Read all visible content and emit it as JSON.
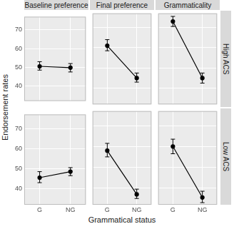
{
  "chart_data": {
    "type": "line",
    "x_label": "Grammatical status",
    "y_label": "Endorsement rates",
    "columns": [
      "Baseline preference",
      "Final preference",
      "Grammaticality"
    ],
    "rows": [
      "High ACS",
      "Low ACS"
    ],
    "categories": [
      "G",
      "NG"
    ],
    "ylim": [
      32,
      77
    ],
    "yticks": [
      40,
      50,
      60,
      70
    ],
    "grid": true,
    "color": "#000000",
    "marker": "circle",
    "panels": [
      {
        "column": "Baseline preference",
        "row": "High ACS",
        "values": [
          50.5,
          49.8
        ],
        "lower": [
          48.5,
          47.5
        ],
        "upper": [
          53,
          52
        ]
      },
      {
        "column": "Final preference",
        "row": "High ACS",
        "values": [
          61,
          45
        ],
        "lower": [
          58.5,
          43
        ],
        "upper": [
          64,
          47.5
        ]
      },
      {
        "column": "Grammaticality",
        "row": "High ACS",
        "values": [
          73,
          45
        ],
        "lower": [
          70.5,
          42.5
        ],
        "upper": [
          75.5,
          47.5
        ]
      },
      {
        "column": "Baseline preference",
        "row": "Low ACS",
        "values": [
          45.5,
          48.5
        ],
        "lower": [
          43,
          46.5
        ],
        "upper": [
          48.5,
          50.5
        ]
      },
      {
        "column": "Final preference",
        "row": "Low ACS",
        "values": [
          58,
          37
        ],
        "lower": [
          55,
          35
        ],
        "upper": [
          61.5,
          39.5
        ]
      },
      {
        "column": "Grammaticality",
        "row": "Low ACS",
        "values": [
          60,
          35.5
        ],
        "lower": [
          56.5,
          33
        ],
        "upper": [
          63.5,
          38.5
        ]
      }
    ]
  }
}
